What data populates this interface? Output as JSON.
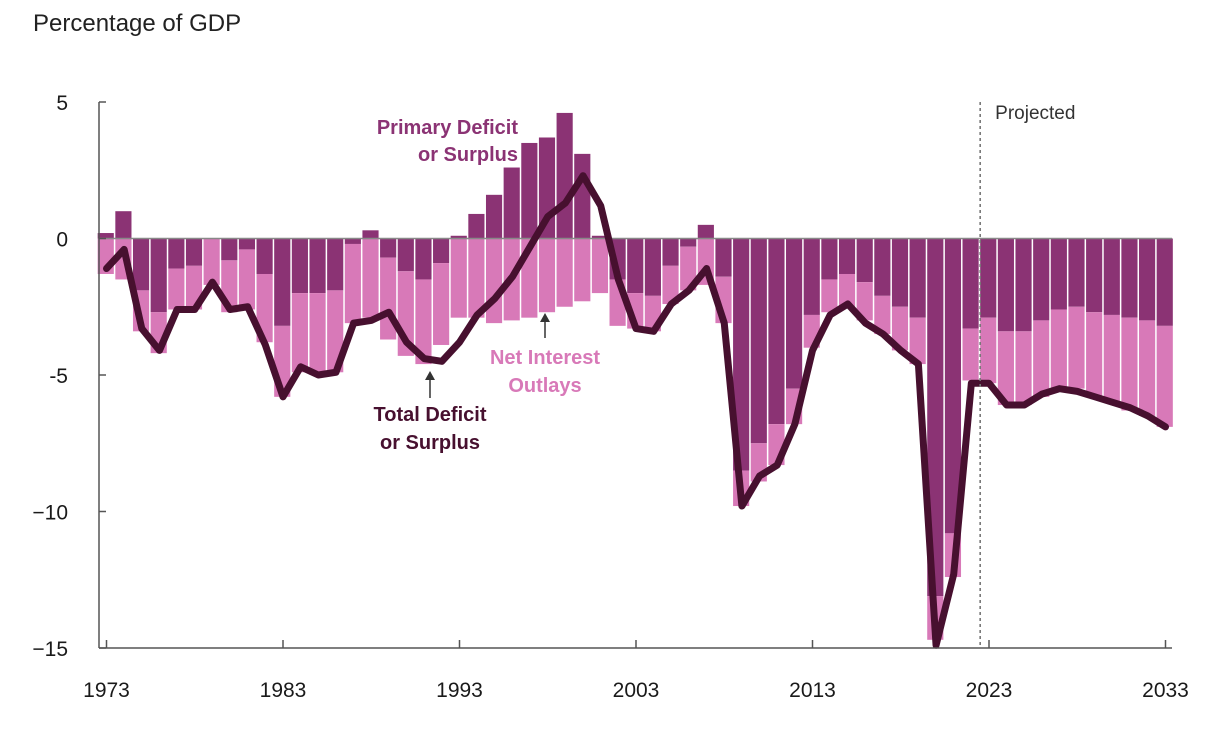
{
  "header": {
    "title": "Percentage of GDP"
  },
  "chart_data": {
    "type": "bar+line",
    "title": "Percentage of GDP",
    "xlim": [
      1973,
      2033
    ],
    "ylim": [
      -15,
      5
    ],
    "y_ticks": [
      5,
      0,
      -5,
      -10,
      -15
    ],
    "y_tick_labels": [
      "5",
      "0",
      "-5",
      "−10",
      "−15"
    ],
    "x_ticks": [
      1973,
      1983,
      1993,
      2003,
      2013,
      2023,
      2033
    ],
    "x_tick_labels": [
      "1973",
      "1983",
      "1993",
      "2003",
      "2013",
      "2023",
      "2033"
    ],
    "projected_from": 2022.5,
    "projected_label": "Projected",
    "colors": {
      "primary": "#8b3374",
      "net_interest": "#d879b8",
      "total": "#47102f",
      "axis": "#555555"
    },
    "annotations": {
      "primary": [
        "Primary Deficit",
        "or Surplus"
      ],
      "net_interest": [
        "Net Interest",
        "Outlays"
      ],
      "total": [
        "Total Deficit",
        "or Surplus"
      ]
    },
    "years": [
      1973,
      1974,
      1975,
      1976,
      1977,
      1978,
      1979,
      1980,
      1981,
      1982,
      1983,
      1984,
      1985,
      1986,
      1987,
      1988,
      1989,
      1990,
      1991,
      1992,
      1993,
      1994,
      1995,
      1996,
      1997,
      1998,
      1999,
      2000,
      2001,
      2002,
      2003,
      2004,
      2005,
      2006,
      2007,
      2008,
      2009,
      2010,
      2011,
      2012,
      2013,
      2014,
      2015,
      2016,
      2017,
      2018,
      2019,
      2020,
      2021,
      2022,
      2023,
      2024,
      2025,
      2026,
      2027,
      2028,
      2029,
      2030,
      2031,
      2032,
      2033
    ],
    "series": [
      {
        "name": "Primary Deficit or Surplus",
        "kind": "bar",
        "values": [
          0.2,
          1.0,
          -1.9,
          -2.7,
          -1.1,
          -1.0,
          0.0,
          -0.8,
          -0.4,
          -1.3,
          -3.2,
          -2.0,
          -2.0,
          -1.9,
          -0.2,
          0.3,
          -0.7,
          -1.2,
          -1.5,
          -0.9,
          0.1,
          0.9,
          1.6,
          2.6,
          3.5,
          3.7,
          4.6,
          3.1,
          0.1,
          -1.5,
          -2.0,
          -2.1,
          -1.0,
          -0.3,
          0.5,
          -1.4,
          -8.5,
          -7.5,
          -6.8,
          -5.5,
          -2.8,
          -1.5,
          -1.3,
          -1.6,
          -2.1,
          -2.5,
          -2.9,
          -13.1,
          -10.8,
          -3.3,
          -2.9,
          -3.4,
          -3.4,
          -3.0,
          -2.6,
          -2.5,
          -2.7,
          -2.8,
          -2.9,
          -3.0,
          -3.2
        ]
      },
      {
        "name": "Net Interest Outlays",
        "kind": "bar",
        "values": [
          -1.3,
          -1.5,
          -1.5,
          -1.5,
          -1.5,
          -1.6,
          -1.7,
          -1.9,
          -2.2,
          -2.5,
          -2.6,
          -2.9,
          -3.0,
          -3.0,
          -2.9,
          -2.9,
          -3.0,
          -3.1,
          -3.1,
          -3.0,
          -2.9,
          -2.9,
          -3.1,
          -3.0,
          -2.9,
          -2.7,
          -2.5,
          -2.3,
          -2.0,
          -1.7,
          -1.3,
          -1.3,
          -1.4,
          -1.6,
          -1.7,
          -1.7,
          -1.3,
          -1.4,
          -1.5,
          -1.3,
          -1.2,
          -1.2,
          -1.2,
          -1.4,
          -1.4,
          -1.6,
          -1.7,
          -1.6,
          -1.6,
          -1.9,
          -2.4,
          -2.7,
          -2.7,
          -2.8,
          -2.9,
          -3.0,
          -3.1,
          -3.2,
          -3.4,
          -3.5,
          -3.7
        ]
      },
      {
        "name": "Total Deficit or Surplus",
        "kind": "line",
        "values": [
          -1.1,
          -0.4,
          -3.3,
          -4.1,
          -2.6,
          -2.6,
          -1.6,
          -2.6,
          -2.5,
          -3.9,
          -5.8,
          -4.7,
          -5.0,
          -4.9,
          -3.1,
          -3.0,
          -2.7,
          -3.8,
          -4.4,
          -4.5,
          -3.8,
          -2.8,
          -2.2,
          -1.4,
          -0.3,
          0.8,
          1.3,
          2.3,
          1.2,
          -1.5,
          -3.3,
          -3.4,
          -2.4,
          -1.9,
          -1.1,
          -3.1,
          -9.8,
          -8.7,
          -8.3,
          -6.8,
          -4.1,
          -2.8,
          -2.4,
          -3.1,
          -3.5,
          -4.1,
          -4.6,
          -14.9,
          -12.3,
          -5.3,
          -5.3,
          -6.1,
          -6.1,
          -5.7,
          -5.5,
          -5.6,
          -5.8,
          -6.0,
          -6.2,
          -6.5,
          -6.9
        ]
      }
    ]
  }
}
